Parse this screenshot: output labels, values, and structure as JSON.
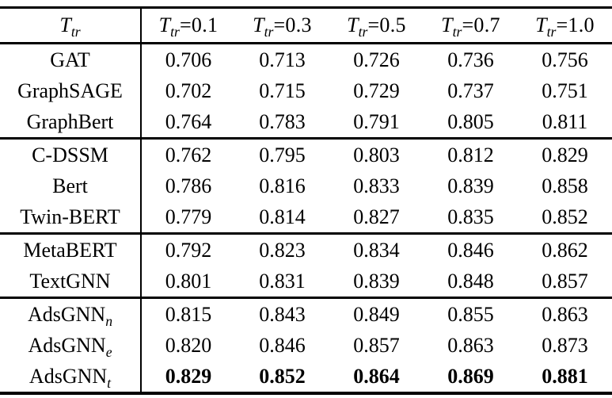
{
  "page": {
    "background": "#ffffff",
    "text_color": "#000000",
    "rule_color": "#000000"
  },
  "table": {
    "header": {
      "first": {
        "base": "T",
        "sub": "tr",
        "rest": ""
      },
      "columns": [
        {
          "base": "T",
          "sub": "tr",
          "rest": "=0.1"
        },
        {
          "base": "T",
          "sub": "tr",
          "rest": "=0.3"
        },
        {
          "base": "T",
          "sub": "tr",
          "rest": "=0.5"
        },
        {
          "base": "T",
          "sub": "tr",
          "rest": "=0.7"
        },
        {
          "base": "T",
          "sub": "tr",
          "rest": "=1.0"
        }
      ]
    },
    "groups": [
      {
        "rows": [
          {
            "name": "GAT",
            "sub": "",
            "bold": false,
            "values": [
              "0.706",
              "0.713",
              "0.726",
              "0.736",
              "0.756"
            ]
          },
          {
            "name": "GraphSAGE",
            "sub": "",
            "bold": false,
            "values": [
              "0.702",
              "0.715",
              "0.729",
              "0.737",
              "0.751"
            ]
          },
          {
            "name": "GraphBert",
            "sub": "",
            "bold": false,
            "values": [
              "0.764",
              "0.783",
              "0.791",
              "0.805",
              "0.811"
            ]
          }
        ]
      },
      {
        "rows": [
          {
            "name": "C-DSSM",
            "sub": "",
            "bold": false,
            "values": [
              "0.762",
              "0.795",
              "0.803",
              "0.812",
              "0.829"
            ]
          },
          {
            "name": "Bert",
            "sub": "",
            "bold": false,
            "values": [
              "0.786",
              "0.816",
              "0.833",
              "0.839",
              "0.858"
            ]
          },
          {
            "name": "Twin-BERT",
            "sub": "",
            "bold": false,
            "values": [
              "0.779",
              "0.814",
              "0.827",
              "0.835",
              "0.852"
            ]
          }
        ]
      },
      {
        "rows": [
          {
            "name": "MetaBERT",
            "sub": "",
            "bold": false,
            "values": [
              "0.792",
              "0.823",
              "0.834",
              "0.846",
              "0.862"
            ]
          },
          {
            "name": "TextGNN",
            "sub": "",
            "bold": false,
            "values": [
              "0.801",
              "0.831",
              "0.839",
              "0.848",
              "0.857"
            ]
          }
        ]
      },
      {
        "rows": [
          {
            "name": "AdsGNN",
            "sub": "n",
            "bold": false,
            "values": [
              "0.815",
              "0.843",
              "0.849",
              "0.855",
              "0.863"
            ]
          },
          {
            "name": "AdsGNN",
            "sub": "e",
            "bold": false,
            "values": [
              "0.820",
              "0.846",
              "0.857",
              "0.863",
              "0.873"
            ]
          },
          {
            "name": "AdsGNN",
            "sub": "t",
            "bold": true,
            "values": [
              "0.829",
              "0.852",
              "0.864",
              "0.869",
              "0.881"
            ]
          }
        ]
      }
    ]
  }
}
